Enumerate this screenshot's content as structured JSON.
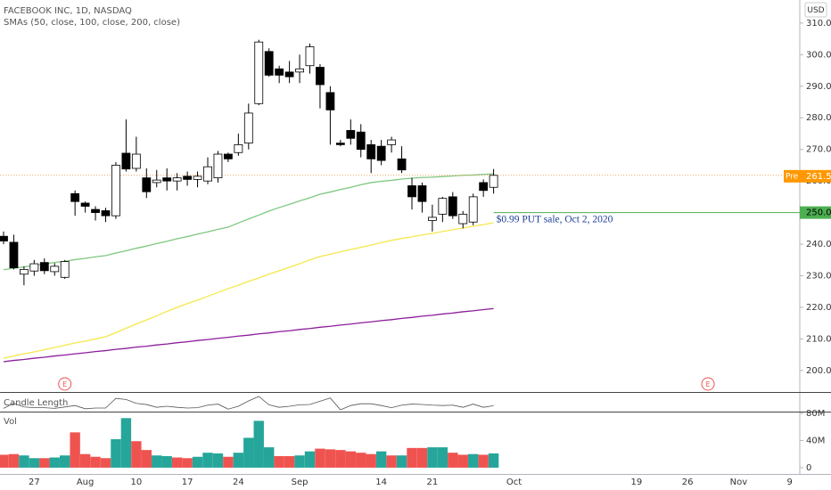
{
  "chart_data": {
    "type": "candlestick",
    "title": "FACEBOOK INC, 1D, NASDAQ",
    "subtitle": "SMAs (50, close, 100, close, 200, close)",
    "currency": "USD",
    "categories": [
      null,
      null,
      null,
      "27",
      null,
      null,
      null,
      null,
      "Aug",
      null,
      null,
      null,
      null,
      "10",
      null,
      null,
      null,
      null,
      "17",
      null,
      null,
      null,
      null,
      "24",
      null,
      null,
      null,
      null,
      null,
      "Sep",
      null,
      null,
      null,
      null,
      null,
      null,
      null,
      "14",
      null,
      null,
      null,
      null,
      "21",
      null,
      null,
      null,
      null,
      null,
      null,
      null,
      "Oct",
      null,
      null,
      null,
      null,
      null,
      null,
      null,
      null,
      null,
      null,
      null,
      "19",
      null,
      null,
      null,
      null,
      "26",
      null,
      null,
      null,
      null,
      "Nov",
      null,
      null,
      null,
      null,
      "9"
    ],
    "open": [
      242.5,
      240.6,
      230.5,
      231.5,
      234.2,
      231.3,
      229.5,
      256,
      253,
      251,
      250.6,
      249,
      268.8,
      264,
      261,
      259.5,
      261,
      260,
      261.5,
      260.5,
      260,
      261,
      268.5,
      269,
      272,
      284.5,
      301,
      295.5,
      294.5,
      294.5,
      296.5,
      296,
      288,
      272,
      276,
      275.5,
      271.5,
      271,
      271.5,
      267,
      258.5,
      258.5,
      247.5,
      249.5,
      255,
      246.5,
      247,
      259.5,
      258,
      null,
      null,
      null,
      null,
      null,
      null,
      null,
      null,
      null,
      null,
      null,
      null,
      null,
      null,
      null,
      null,
      null,
      null,
      null,
      null,
      null,
      null,
      null,
      null,
      null,
      null,
      null,
      null,
      null
    ],
    "high": [
      244,
      243,
      233,
      235,
      235.5,
      234,
      235,
      257,
      253.5,
      252,
      251.5,
      266,
      279.5,
      274,
      264,
      263.5,
      264,
      262.5,
      263,
      263,
      267.5,
      269.5,
      269,
      275,
      284.5,
      304.7,
      302,
      296.5,
      298,
      300,
      303.5,
      297,
      290,
      273,
      279.5,
      278,
      273,
      273,
      274,
      271,
      261,
      259.5,
      252.5,
      255,
      256.5,
      250.5,
      256,
      260.5,
      263.8,
      null,
      null,
      null,
      null,
      null,
      null,
      null,
      null,
      null,
      null,
      null,
      null,
      null,
      null,
      null,
      null,
      null,
      null,
      null,
      null,
      null,
      null,
      null,
      null,
      null,
      null,
      null,
      null,
      null
    ],
    "low": [
      240,
      232,
      227,
      230,
      230.5,
      230,
      229,
      249,
      250,
      247.5,
      247,
      248,
      263,
      263,
      254.6,
      258,
      257,
      257,
      258.5,
      258,
      259,
      259.5,
      266,
      268,
      270,
      284,
      293,
      291,
      291,
      291,
      294,
      283,
      271.5,
      271,
      271.5,
      267.5,
      262.5,
      265,
      269,
      262.5,
      251,
      250,
      244,
      247,
      248,
      245,
      246,
      255,
      256,
      null,
      null,
      null,
      null,
      null,
      null,
      null,
      null,
      null,
      null,
      null,
      null,
      null,
      null,
      null,
      null,
      null,
      null,
      null,
      null,
      null,
      null,
      null,
      null,
      null,
      null,
      null,
      null,
      null
    ],
    "close": [
      241,
      232.5,
      232,
      233.8,
      231.6,
      233,
      234.5,
      253.5,
      252,
      250,
      249,
      265,
      263.8,
      268.5,
      256.6,
      260.3,
      260,
      261,
      260.5,
      261.5,
      264.5,
      268.5,
      267,
      271.5,
      281.5,
      304,
      293.5,
      293.5,
      293,
      295.5,
      302.5,
      290.5,
      282.5,
      271.5,
      273.5,
      270,
      267,
      266.5,
      273,
      263.5,
      255,
      253.5,
      248.5,
      254.5,
      249,
      249.5,
      255,
      257,
      261.79,
      null,
      null,
      null,
      null,
      null,
      null,
      null,
      null,
      null,
      null,
      null,
      null,
      null,
      null,
      null,
      null,
      null,
      null,
      null,
      null,
      null,
      null,
      null,
      null,
      null,
      null,
      null,
      null,
      null
    ],
    "up_color": "#ffffff",
    "down_color": "#000000",
    "sma_series": [
      {
        "color": "#7fc77f",
        "values": [
          231.9,
          232.4,
          232.8,
          233.3,
          233.7,
          234.2,
          234.6,
          235.1,
          235.5,
          236.0,
          236.4,
          237.2,
          237.9,
          238.7,
          239.4,
          240.2,
          240.9,
          241.7,
          242.4,
          243.2,
          243.9,
          244.7,
          245.4,
          246.7,
          248.0,
          249.2,
          250.5,
          251.6,
          252.6,
          253.7,
          254.7,
          255.8,
          256.5,
          257.3,
          258.0,
          258.8,
          259.5,
          259.9,
          260.2,
          260.6,
          260.9,
          261.1,
          261.2,
          261.4,
          261.6,
          261.8,
          261.9,
          262.1,
          262.3,
          null,
          null,
          null,
          null,
          null,
          null,
          null,
          null,
          null,
          null,
          null,
          null,
          null,
          null,
          null,
          null,
          null,
          null,
          null,
          null,
          null,
          null,
          null,
          null,
          null,
          null,
          null,
          null,
          null
        ]
      },
      {
        "color": "#f5e84a",
        "values": [
          203.9,
          204.6,
          205.3,
          205.9,
          206.6,
          207.3,
          208.0,
          208.7,
          209.3,
          210.0,
          210.7,
          212.0,
          213.4,
          214.7,
          216.0,
          217.3,
          218.7,
          220.0,
          221.2,
          222.3,
          223.5,
          224.7,
          225.9,
          227.0,
          228.2,
          229.3,
          230.5,
          231.6,
          232.7,
          233.8,
          235.0,
          236.1,
          236.8,
          237.6,
          238.3,
          239.0,
          239.7,
          240.5,
          241.2,
          241.8,
          242.3,
          242.9,
          243.4,
          244.0,
          244.6,
          245.1,
          245.7,
          246.2,
          246.8,
          null,
          null,
          null,
          null,
          null,
          null,
          null,
          null,
          null,
          null,
          null,
          null,
          null,
          null,
          null,
          null,
          null,
          null,
          null,
          null,
          null,
          null,
          null,
          null,
          null,
          null,
          null,
          null,
          null
        ]
      },
      {
        "color": "#8b1d9b",
        "values": [
          202.8,
          203.2,
          203.5,
          203.9,
          204.2,
          204.6,
          204.9,
          205.3,
          205.6,
          206.0,
          206.3,
          206.7,
          207.0,
          207.4,
          207.7,
          208.1,
          208.4,
          208.8,
          209.1,
          209.5,
          209.8,
          210.2,
          210.5,
          210.9,
          211.2,
          211.6,
          211.9,
          212.3,
          212.6,
          213.0,
          213.3,
          213.7,
          214.0,
          214.4,
          214.7,
          215.1,
          215.4,
          215.8,
          216.1,
          216.5,
          216.8,
          217.2,
          217.5,
          217.9,
          218.2,
          218.6,
          218.9,
          219.3,
          219.6,
          null,
          null,
          null,
          null,
          null,
          null,
          null,
          null,
          null,
          null,
          null,
          null,
          null,
          null,
          null,
          null,
          null,
          null,
          null,
          null,
          null,
          null,
          null,
          null,
          null,
          null,
          null,
          null,
          null
        ]
      }
    ],
    "ylim": [
      193.2,
      317.3
    ],
    "yticks": [
      {
        "value": 310,
        "label": "310.00"
      },
      {
        "value": 300,
        "label": "300.00"
      },
      {
        "value": 290,
        "label": "290.00"
      },
      {
        "value": 280,
        "label": "280.00"
      },
      {
        "value": 270,
        "label": "270.00"
      },
      {
        "value": 260,
        "label": "260.00"
      },
      {
        "value": 250,
        "label": "250.00"
      },
      {
        "value": 240,
        "label": "240.00"
      },
      {
        "value": 230,
        "label": "230.00"
      },
      {
        "value": 220,
        "label": "220.00"
      },
      {
        "value": 210,
        "label": "210.00"
      },
      {
        "value": 200,
        "label": "200.00"
      }
    ],
    "last_price": 261.79,
    "last_price_color": "#f5a25d",
    "premarket": {
      "tag": "Pre",
      "price": {
        "value": 261.5,
        "label": "261.50"
      },
      "color": "#ff9800"
    },
    "alert_line": {
      "price": {
        "value": 250,
        "label": "250.00"
      },
      "annotation": "$0.99 PUT sale, Oct 2, 2020",
      "color": "#4caf50"
    },
    "earnings": [
      null,
      null,
      null,
      null,
      null,
      null,
      "E",
      null,
      null,
      null,
      null,
      null,
      null,
      null,
      null,
      null,
      null,
      null,
      null,
      null,
      null,
      null,
      null,
      null,
      null,
      null,
      null,
      null,
      null,
      null,
      null,
      null,
      null,
      null,
      null,
      null,
      null,
      null,
      null,
      null,
      null,
      null,
      null,
      null,
      null,
      null,
      null,
      null,
      null,
      null,
      null,
      null,
      null,
      null,
      null,
      null,
      null,
      null,
      null,
      null,
      null,
      null,
      null,
      null,
      null,
      null,
      null,
      null,
      null,
      "E",
      null,
      null,
      null,
      null,
      null,
      null,
      null,
      null
    ],
    "candle_length": {
      "title": "Candle Length",
      "color": "#555555",
      "values": [
        4,
        11,
        6,
        5,
        5,
        4,
        6,
        8,
        3.5,
        4.5,
        4.5,
        18,
        16.5,
        11,
        9.4,
        5.5,
        7,
        5.5,
        4.5,
        5,
        8.5,
        10,
        3,
        7,
        14.5,
        20.7,
        9,
        5.5,
        7,
        9,
        9.5,
        14,
        18.5,
        2,
        8,
        10.5,
        10.5,
        8,
        5,
        8.5,
        10,
        9.5,
        8.5,
        8,
        8.5,
        5.5,
        10,
        5.5,
        7.8,
        null,
        null,
        null,
        null,
        null,
        null,
        null,
        null,
        null,
        null,
        null,
        null,
        null,
        null,
        null,
        null,
        null,
        null,
        null,
        null,
        null,
        null,
        null,
        null,
        null,
        null,
        null,
        null,
        null
      ]
    },
    "volume": {
      "title": "Vol",
      "values": [
        19,
        20,
        18,
        14,
        14,
        15,
        18,
        52,
        20,
        16,
        14,
        42,
        73,
        39,
        26,
        18,
        17,
        15,
        14,
        16,
        22,
        21,
        16,
        22,
        44,
        69,
        30,
        17,
        17,
        18,
        24,
        28,
        27,
        26,
        24,
        22,
        20,
        24,
        18,
        18,
        29,
        29,
        30,
        30,
        22,
        19,
        20,
        19,
        21,
        null,
        null,
        null,
        null,
        null,
        null,
        null,
        null,
        null,
        null,
        null,
        null,
        null,
        null,
        null,
        null,
        null,
        null,
        null,
        null,
        null,
        null,
        null,
        null,
        null,
        null,
        null,
        null,
        null
      ],
      "colors": [
        "#ef5350",
        "#ef5350",
        "#26a69a",
        "#26a69a",
        "#ef5350",
        "#26a69a",
        "#26a69a",
        "#ef5350",
        "#ef5350",
        "#ef5350",
        "#ef5350",
        "#26a69a",
        "#26a69a",
        "#ef5350",
        "#ef5350",
        "#26a69a",
        "#26a69a",
        "#ef5350",
        "#ef5350",
        "#26a69a",
        "#26a69a",
        "#26a69a",
        "#ef5350",
        "#26a69a",
        "#26a69a",
        "#26a69a",
        "#26a69a",
        "#ef5350",
        "#ef5350",
        "#26a69a",
        "#26a69a",
        "#ef5350",
        "#ef5350",
        "#ef5350",
        "#ef5350",
        "#ef5350",
        "#ef5350",
        "#26a69a",
        "#ef5350",
        "#26a69a",
        "#ef5350",
        "#ef5350",
        "#26a69a",
        "#26a69a",
        "#ef5350",
        "#ef5350",
        "#26a69a",
        "#ef5350",
        "#26a69a",
        null,
        null,
        null,
        null,
        null,
        null,
        null,
        null,
        null,
        null,
        null,
        null,
        null,
        null,
        null,
        null,
        null,
        null,
        null,
        null,
        null,
        null,
        null,
        null,
        null,
        null,
        null,
        null,
        null
      ],
      "ylim": [
        -9.3,
        81.3
      ],
      "yticks": [
        {
          "value": 80,
          "label": "80M"
        },
        {
          "value": 40,
          "label": "40M"
        },
        0
      ]
    }
  }
}
